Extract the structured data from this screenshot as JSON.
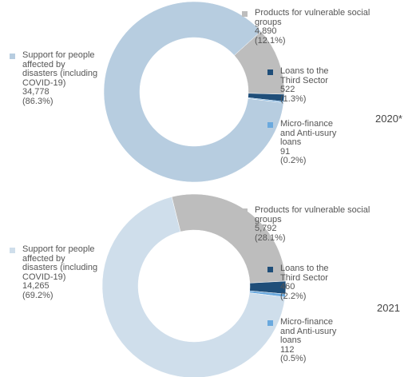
{
  "chart_data": [
    {
      "type": "pie",
      "donut": true,
      "title": "2020*",
      "labels": [
        "Products for vulnerable social groups",
        "Loans to the Third Sector",
        "Micro-finance and Anti-usury loans",
        "Support for people affected by disasters (including COVID-19)"
      ],
      "values": [
        4890,
        522,
        91,
        34778
      ],
      "value_labels": [
        "4,890",
        "522",
        "91",
        "34,778"
      ],
      "percents": [
        12.1,
        1.3,
        0.2,
        86.3
      ],
      "percent_labels": [
        "(12.1%)",
        "(1.3%)",
        "(0.2%)",
        "(86.3%)"
      ],
      "colors": [
        "#bdbdbd",
        "#1f4e79",
        "#6aa9de",
        "#b7cde0"
      ]
    },
    {
      "type": "pie",
      "donut": true,
      "title": "2021",
      "labels": [
        "Products for vulnerable social groups",
        "Loans to the Third Sector",
        "Micro-finance and Anti-usury loans",
        "Support for people affected by disasters (including COVID-19)"
      ],
      "values": [
        5792,
        460,
        112,
        14265
      ],
      "value_labels": [
        "5,792",
        "460",
        "112",
        "14,265"
      ],
      "percents": [
        28.1,
        2.2,
        0.5,
        69.2
      ],
      "percent_labels": [
        "(28.1%)",
        "(2.2%)",
        "(0.5%)",
        "(69.2%)"
      ],
      "colors": [
        "#bdbdbd",
        "#1f4e79",
        "#6aa9de",
        "#cfdeeb"
      ]
    }
  ]
}
